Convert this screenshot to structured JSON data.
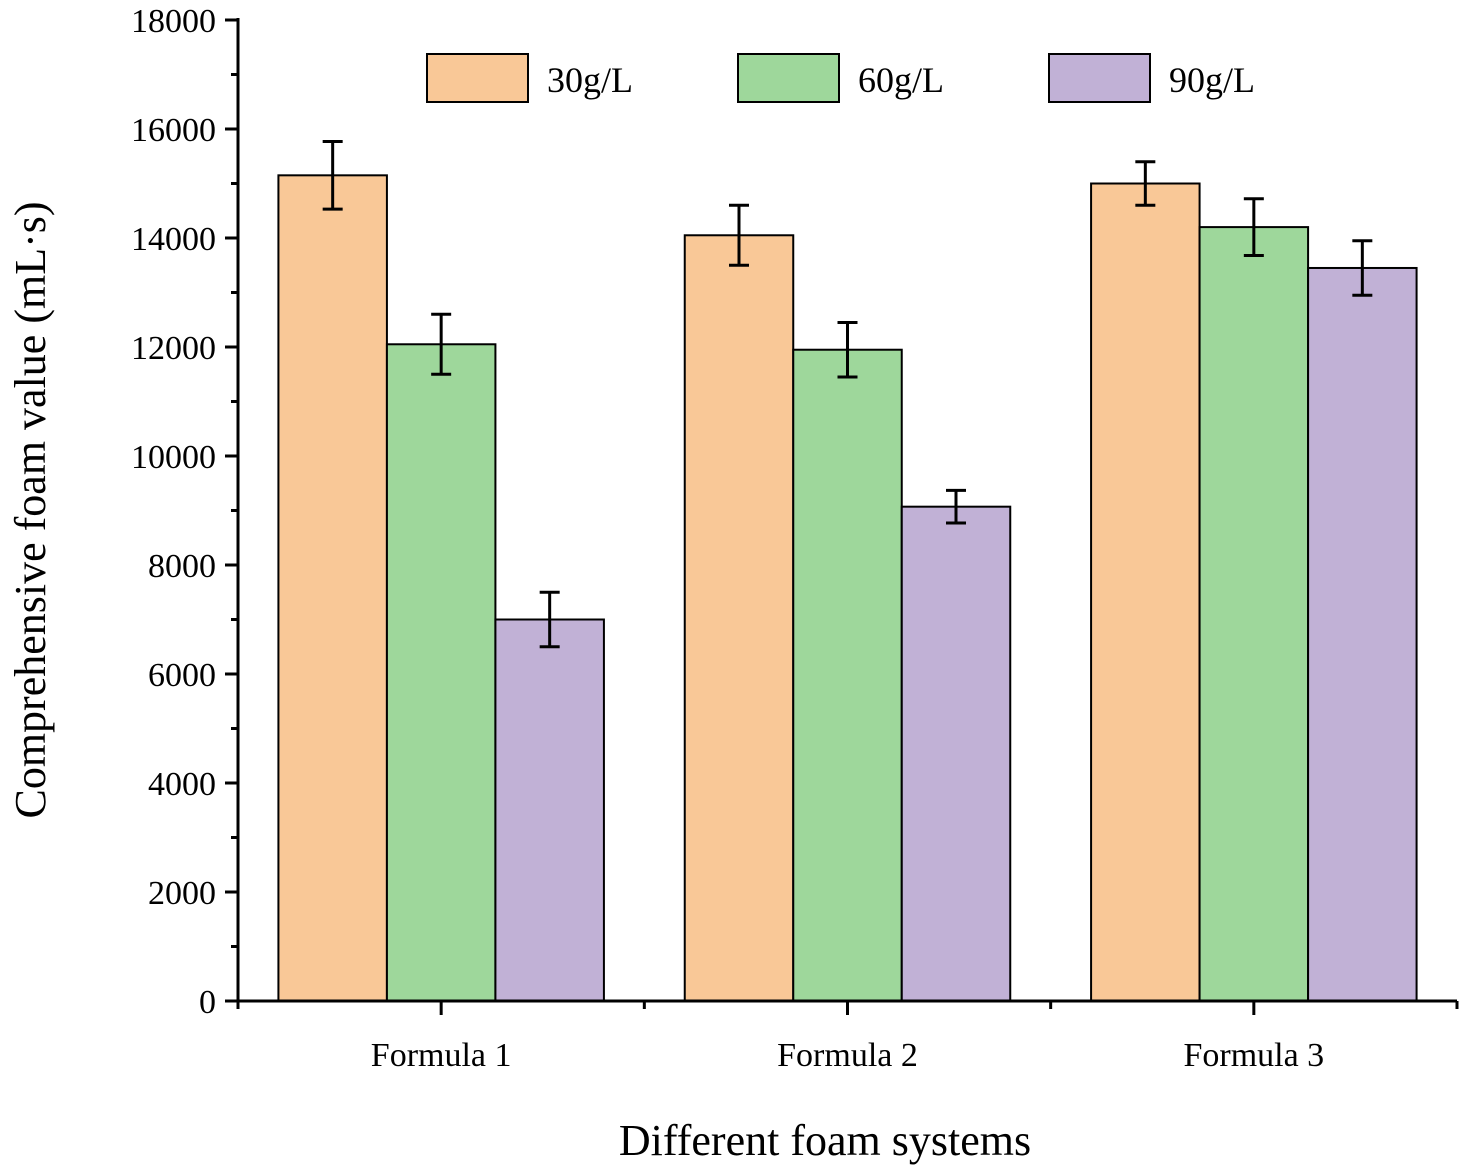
{
  "chart_data": {
    "type": "bar",
    "title": "",
    "xlabel": "Different foam systems",
    "ylabel": "Comprehensive foam value (mL·s)",
    "categories": [
      "Formula 1",
      "Formula 2",
      "Formula 3"
    ],
    "ylim": [
      0,
      18000
    ],
    "yticks": [
      0,
      2000,
      4000,
      6000,
      8000,
      10000,
      12000,
      14000,
      16000,
      18000
    ],
    "ytick_labels": [
      "0",
      "2000",
      "4000",
      "6000",
      "8000",
      "10000",
      "12000",
      "14000",
      "16000",
      "18000"
    ],
    "grid": false,
    "legend_position": "top",
    "series": [
      {
        "name": "30g/L",
        "color": "#F9C897",
        "values": [
          15150,
          14050,
          15000
        ],
        "errors": [
          620,
          550,
          400
        ]
      },
      {
        "name": "60g/L",
        "color": "#9ED79B",
        "values": [
          12050,
          11950,
          14200
        ],
        "errors": [
          550,
          500,
          520
        ]
      },
      {
        "name": "90g/L",
        "color": "#C1B1D6",
        "values": [
          7000,
          9070,
          13450
        ],
        "errors": [
          500,
          300,
          500
        ]
      }
    ]
  }
}
